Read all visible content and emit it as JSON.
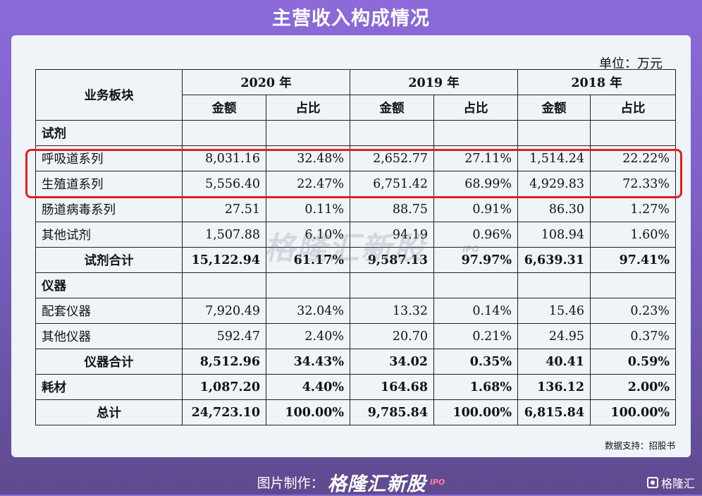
{
  "title": "主营收入构成情况",
  "unit": "单位：万元",
  "table": {
    "header_row1": [
      "业务板块",
      "2020 年",
      "2019 年",
      "2018 年"
    ],
    "header_row2": [
      "金额",
      "占比",
      "金额",
      "占比",
      "金额",
      "占比"
    ],
    "rows": [
      {
        "type": "cat",
        "label": "试剂",
        "cells": [
          "",
          "",
          "",
          "",
          "",
          ""
        ]
      },
      {
        "type": "sub",
        "label": "呼吸道系列",
        "cells": [
          "8,031.16",
          "32.48%",
          "2,652.77",
          "27.11%",
          "1,514.24",
          "22.22%"
        ]
      },
      {
        "type": "sub",
        "label": "生殖道系列",
        "cells": [
          "5,556.40",
          "22.47%",
          "6,751.42",
          "68.99%",
          "4,929.83",
          "72.33%"
        ]
      },
      {
        "type": "sub",
        "label": "肠道病毒系列",
        "cells": [
          "27.51",
          "0.11%",
          "88.75",
          "0.91%",
          "86.30",
          "1.27%"
        ]
      },
      {
        "type": "sub",
        "label": "其他试剂",
        "cells": [
          "1,507.88",
          "6.10%",
          "94.19",
          "0.96%",
          "108.94",
          "1.60%"
        ]
      },
      {
        "type": "total",
        "label": "试剂合计",
        "cells": [
          "15,122.94",
          "61.17%",
          "9,587.13",
          "97.97%",
          "6,639.31",
          "97.41%"
        ]
      },
      {
        "type": "cat",
        "label": "仪器",
        "cells": [
          "",
          "",
          "",
          "",
          "",
          ""
        ]
      },
      {
        "type": "sub",
        "label": "配套仪器",
        "cells": [
          "7,920.49",
          "32.04%",
          "13.32",
          "0.14%",
          "15.46",
          "0.23%"
        ]
      },
      {
        "type": "sub",
        "label": "其他仪器",
        "cells": [
          "592.47",
          "2.40%",
          "20.70",
          "0.21%",
          "24.95",
          "0.37%"
        ]
      },
      {
        "type": "total",
        "label": "仪器合计",
        "cells": [
          "8,512.96",
          "34.43%",
          "34.02",
          "0.35%",
          "40.41",
          "0.59%"
        ]
      },
      {
        "type": "cat-bold",
        "label": "耗材",
        "cells": [
          "1,087.20",
          "4.40%",
          "164.68",
          "1.68%",
          "136.12",
          "2.00%"
        ]
      },
      {
        "type": "total",
        "label": "总计",
        "cells": [
          "24,723.10",
          "100.00%",
          "9,785.84",
          "100.00%",
          "6,815.84",
          "100.00%"
        ]
      }
    ]
  },
  "watermark": {
    "brand": "格隆汇新股",
    "tag": "IPO"
  },
  "source": "数据支持：招股书",
  "footer": {
    "made_by": "图片制作：",
    "brand": "格隆汇新股",
    "tag": "IPO"
  },
  "corner_logo": {
    "text": "格隆汇",
    "icon": "gelonghui-logo-icon"
  },
  "colors": {
    "highlight": "#e0201c",
    "card_bg": "#eef4f8",
    "page_bg": "#8c6ad9"
  }
}
